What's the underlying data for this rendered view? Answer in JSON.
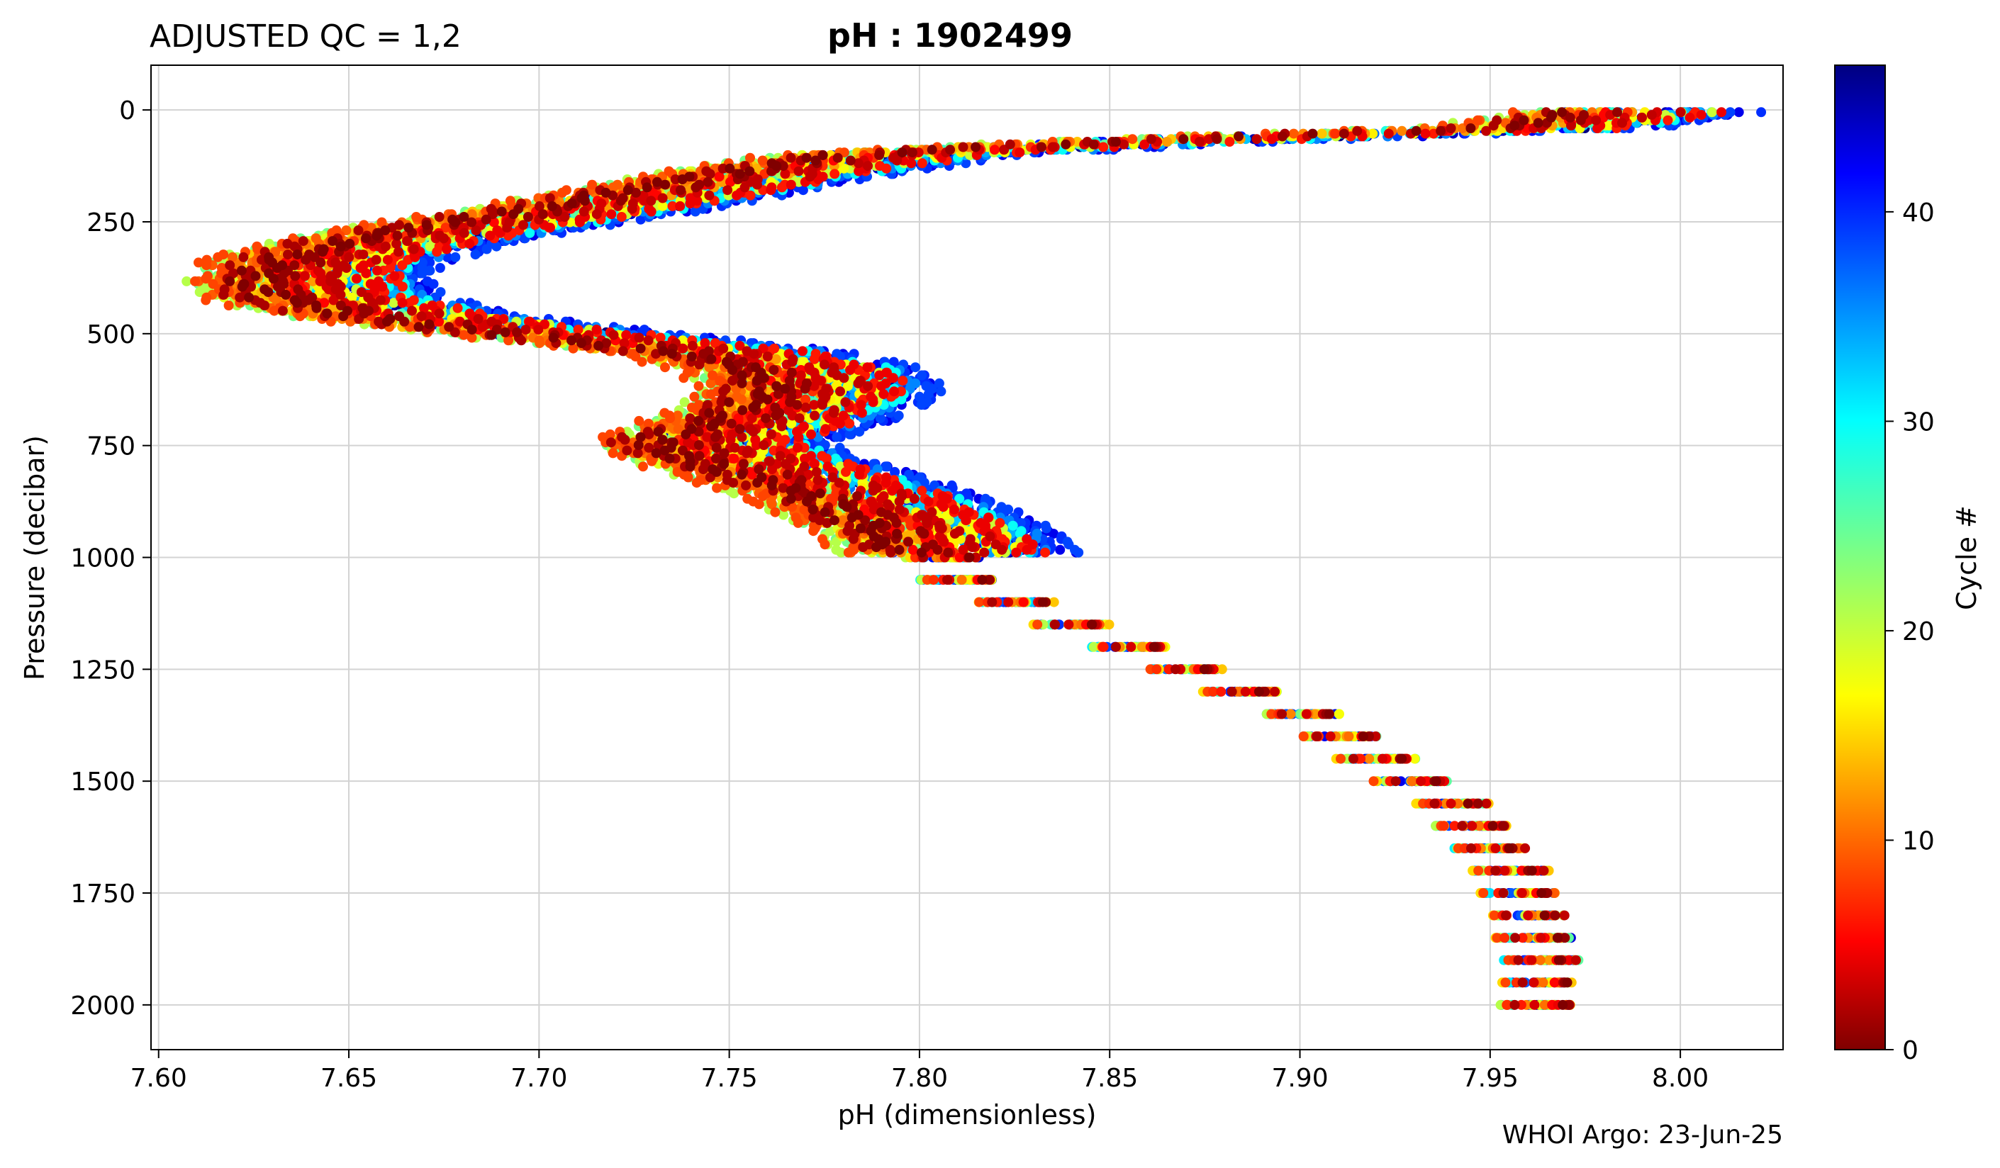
{
  "chart_data": {
    "type": "scatter",
    "title_left": "ADJUSTED QC = 1,2",
    "title_center": "pH : 1902499",
    "xlabel": "pH  (dimensionless)",
    "ylabel": "Pressure  (decibar)",
    "footer": "WHOI Argo: 23-Jun-25",
    "xlim": [
      7.598,
      8.027
    ],
    "ylim": [
      2100,
      -100
    ],
    "y_inverted": true,
    "grid": true,
    "x_ticks": [
      7.6,
      7.65,
      7.7,
      7.75,
      7.8,
      7.85,
      7.9,
      7.95,
      8.0
    ],
    "x_tick_labels": [
      "7.60",
      "7.65",
      "7.70",
      "7.75",
      "7.80",
      "7.85",
      "7.90",
      "7.95",
      "8.00"
    ],
    "y_ticks": [
      0,
      250,
      500,
      750,
      1000,
      1250,
      1500,
      1750,
      2000
    ],
    "y_tick_labels": [
      "0",
      "250",
      "500",
      "750",
      "1000",
      "1250",
      "1500",
      "1750",
      "2000"
    ],
    "colorbar": {
      "label": "Cycle #",
      "colormap": "jet",
      "range": [
        0,
        47
      ],
      "ticks": [
        0,
        10,
        20,
        30,
        40
      ],
      "tick_labels": [
        "0",
        "10",
        "20",
        "30",
        "40"
      ]
    },
    "color_by": "cycle",
    "cycles": 47,
    "profile_template": {
      "pressure": [
        5,
        40,
        70,
        100,
        140,
        180,
        220,
        260,
        300,
        340,
        380,
        420,
        460,
        500,
        540,
        580,
        620,
        660,
        700,
        740,
        780,
        820,
        860,
        900,
        940,
        980,
        1050,
        1100,
        1150,
        1200,
        1250,
        1300,
        1350,
        1400,
        1450,
        1500,
        1550,
        1600,
        1650,
        1700,
        1750,
        1800,
        1850,
        1900,
        1950,
        2000
      ],
      "ph": [
        7.985,
        7.96,
        7.86,
        7.79,
        7.76,
        7.735,
        7.71,
        7.68,
        7.655,
        7.64,
        7.635,
        7.64,
        7.66,
        7.7,
        7.745,
        7.765,
        7.77,
        7.765,
        7.755,
        7.74,
        7.75,
        7.765,
        7.78,
        7.79,
        7.8,
        7.805,
        7.81,
        7.825,
        7.84,
        7.855,
        7.87,
        7.885,
        7.9,
        7.91,
        7.92,
        7.93,
        7.94,
        7.945,
        7.95,
        7.955,
        7.958,
        7.96,
        7.962,
        7.963,
        7.963,
        7.962
      ]
    }
  }
}
